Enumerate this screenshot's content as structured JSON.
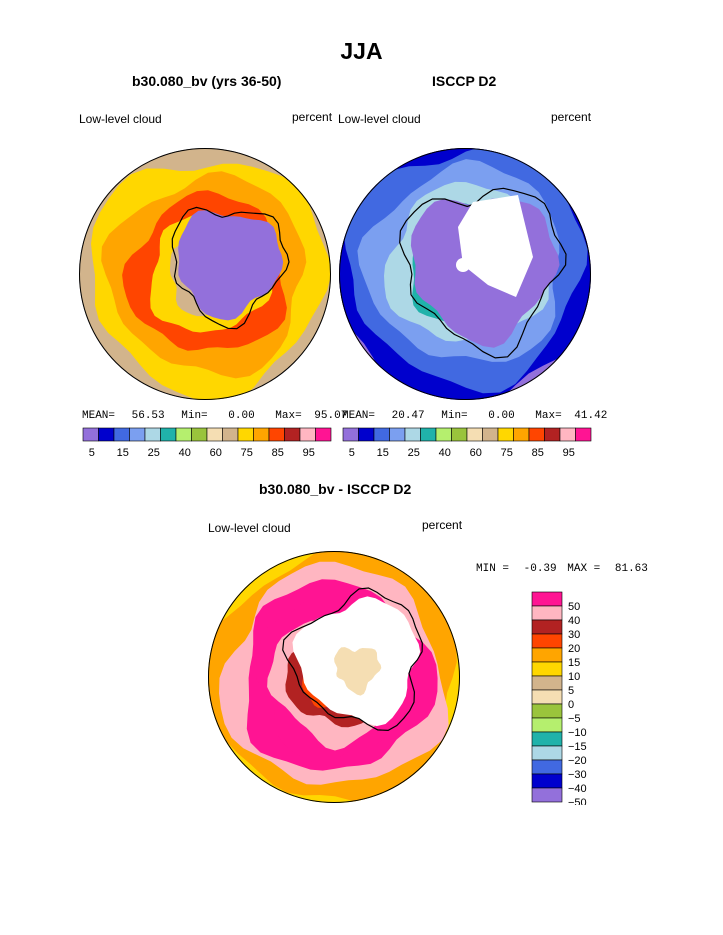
{
  "page": {
    "title": "JJA"
  },
  "palette": {
    "sequential": [
      "#9370db",
      "#0000cd",
      "#4169e1",
      "#7b9ff0",
      "#add8e6",
      "#20b2aa",
      "#b5ef6e",
      "#9ac43c",
      "#f5deb3",
      "#d2b48c",
      "#ffd700",
      "#ffa500",
      "#ff4500",
      "#b22222",
      "#ffb6c1",
      "#ff1493"
    ],
    "difference": [
      "#ff1493",
      "#ffb6c1",
      "#b22222",
      "#ff4500",
      "#ffa500",
      "#ffd700",
      "#d2b48c",
      "#f5deb3",
      "#9ac43c",
      "#b5ef6e",
      "#20b2aa",
      "#add8e6",
      "#4169e1",
      "#0000cd",
      "#9370db"
    ],
    "land": "#ffffff",
    "coast": "#000000"
  },
  "chart_data": [
    {
      "type": "heatmap",
      "id": "model",
      "title": "b30.080_bv (yrs 36-50)",
      "variable": "Low-level cloud",
      "units": "percent",
      "stats": {
        "mean_label": "MEAN=",
        "mean": "56.53",
        "min_label": "Min=",
        "min": "0.00",
        "max_label": "Max=",
        "max": "95.07"
      },
      "colorbar_ticks": [
        "5",
        "15",
        "25",
        "40",
        "60",
        "75",
        "85",
        "95"
      ],
      "ring_levels": [
        3,
        9,
        10,
        11,
        12,
        10,
        9,
        8
      ]
    },
    {
      "type": "heatmap",
      "id": "obs",
      "title": "ISCCP D2",
      "variable": "Low-level cloud",
      "units": "percent",
      "stats": {
        "mean_label": "MEAN=",
        "mean": "20.47",
        "min_label": "Min=",
        "min": "0.00",
        "max_label": "Max=",
        "max": "41.42"
      },
      "colorbar_ticks": [
        "5",
        "15",
        "25",
        "40",
        "60",
        "75",
        "85",
        "95"
      ],
      "ring_levels": [
        0,
        1,
        2,
        3,
        4,
        5,
        6,
        6
      ]
    },
    {
      "type": "heatmap",
      "id": "diff",
      "title": "b30.080_bv - ISCCP D2",
      "variable": "Low-level cloud",
      "units": "percent",
      "stats": {
        "min_label": "MIN =",
        "min": "-0.39",
        "max_label": "MAX =",
        "max": "81.63"
      },
      "colorbar_ticks": [
        "50",
        "40",
        "30",
        "20",
        "15",
        "10",
        "5",
        "0",
        "−5",
        "−10",
        "−15",
        "−20",
        "−30",
        "−40",
        "−50"
      ],
      "ring_levels": [
        7,
        5,
        4,
        1,
        0,
        0,
        1,
        2,
        3,
        4
      ]
    }
  ]
}
